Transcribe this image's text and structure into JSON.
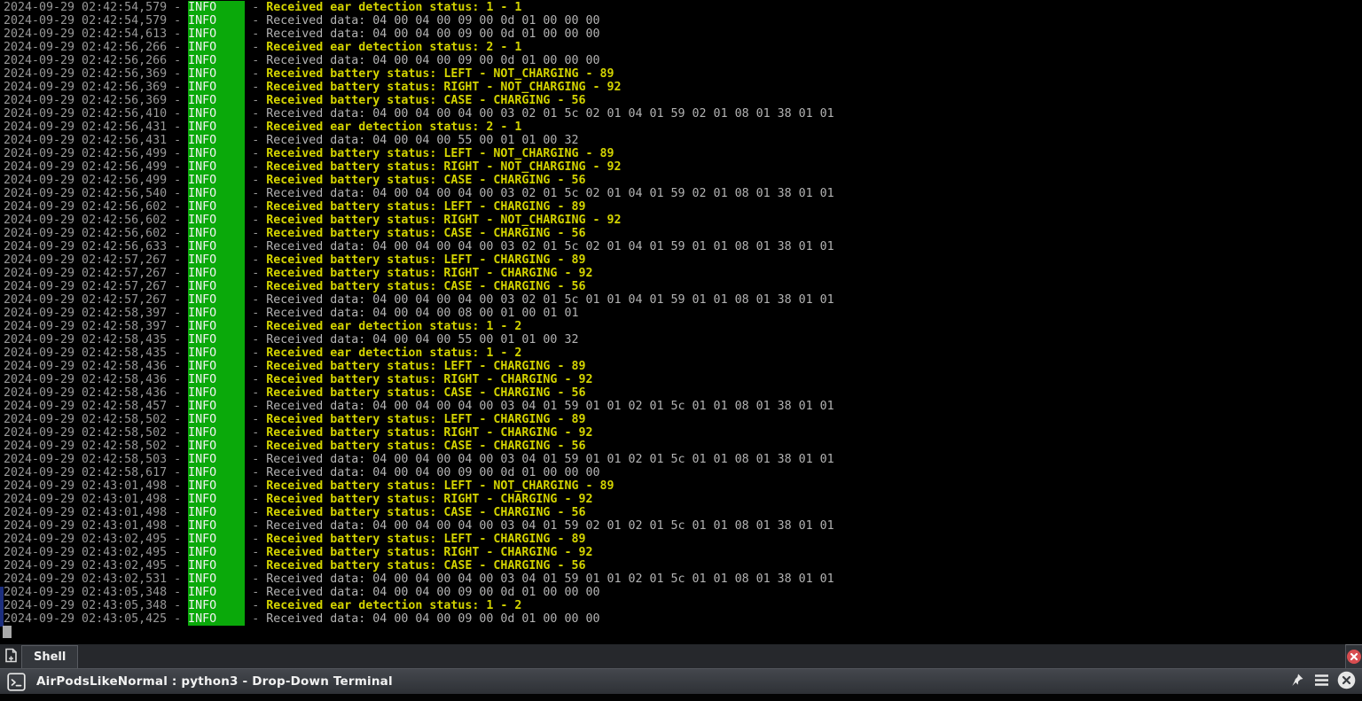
{
  "terminal": {
    "date": "2024-09-29",
    "separator": " - ",
    "level": "INFO",
    "lines": [
      {
        "time": "02:42:54,579",
        "message": "Received ear detection status: 1 - 1",
        "highlight": true
      },
      {
        "time": "02:42:54,579",
        "message": "Received data: 04 00 04 00 09 00 0d 01 00 00 00",
        "highlight": false
      },
      {
        "time": "02:42:54,613",
        "message": "Received data: 04 00 04 00 09 00 0d 01 00 00 00",
        "highlight": false
      },
      {
        "time": "02:42:56,266",
        "message": "Received ear detection status: 2 - 1",
        "highlight": true
      },
      {
        "time": "02:42:56,266",
        "message": "Received data: 04 00 04 00 09 00 0d 01 00 00 00",
        "highlight": false
      },
      {
        "time": "02:42:56,369",
        "message": "Received battery status: LEFT - NOT_CHARGING - 89",
        "highlight": true
      },
      {
        "time": "02:42:56,369",
        "message": "Received battery status: RIGHT - NOT_CHARGING - 92",
        "highlight": true
      },
      {
        "time": "02:42:56,369",
        "message": "Received battery status: CASE - CHARGING - 56",
        "highlight": true
      },
      {
        "time": "02:42:56,410",
        "message": "Received data: 04 00 04 00 04 00 03 02 01 5c 02 01 04 01 59 02 01 08 01 38 01 01",
        "highlight": false
      },
      {
        "time": "02:42:56,431",
        "message": "Received ear detection status: 2 - 1",
        "highlight": true
      },
      {
        "time": "02:42:56,431",
        "message": "Received data: 04 00 04 00 55 00 01 01 00 32",
        "highlight": false
      },
      {
        "time": "02:42:56,499",
        "message": "Received battery status: LEFT - NOT_CHARGING - 89",
        "highlight": true
      },
      {
        "time": "02:42:56,499",
        "message": "Received battery status: RIGHT - NOT_CHARGING - 92",
        "highlight": true
      },
      {
        "time": "02:42:56,499",
        "message": "Received battery status: CASE - CHARGING - 56",
        "highlight": true
      },
      {
        "time": "02:42:56,540",
        "message": "Received data: 04 00 04 00 04 00 03 02 01 5c 02 01 04 01 59 02 01 08 01 38 01 01",
        "highlight": false
      },
      {
        "time": "02:42:56,602",
        "message": "Received battery status: LEFT - CHARGING - 89",
        "highlight": true
      },
      {
        "time": "02:42:56,602",
        "message": "Received battery status: RIGHT - NOT_CHARGING - 92",
        "highlight": true
      },
      {
        "time": "02:42:56,602",
        "message": "Received battery status: CASE - CHARGING - 56",
        "highlight": true
      },
      {
        "time": "02:42:56,633",
        "message": "Received data: 04 00 04 00 04 00 03 02 01 5c 02 01 04 01 59 01 01 08 01 38 01 01",
        "highlight": false
      },
      {
        "time": "02:42:57,267",
        "message": "Received battery status: LEFT - CHARGING - 89",
        "highlight": true
      },
      {
        "time": "02:42:57,267",
        "message": "Received battery status: RIGHT - CHARGING - 92",
        "highlight": true
      },
      {
        "time": "02:42:57,267",
        "message": "Received battery status: CASE - CHARGING - 56",
        "highlight": true
      },
      {
        "time": "02:42:57,267",
        "message": "Received data: 04 00 04 00 04 00 03 02 01 5c 01 01 04 01 59 01 01 08 01 38 01 01",
        "highlight": false
      },
      {
        "time": "02:42:58,397",
        "message": "Received data: 04 00 04 00 08 00 01 00 01 01",
        "highlight": false
      },
      {
        "time": "02:42:58,397",
        "message": "Received ear detection status: 1 - 2",
        "highlight": true
      },
      {
        "time": "02:42:58,435",
        "message": "Received data: 04 00 04 00 55 00 01 01 00 32",
        "highlight": false
      },
      {
        "time": "02:42:58,435",
        "message": "Received ear detection status: 1 - 2",
        "highlight": true
      },
      {
        "time": "02:42:58,436",
        "message": "Received battery status: LEFT - CHARGING - 89",
        "highlight": true
      },
      {
        "time": "02:42:58,436",
        "message": "Received battery status: RIGHT - CHARGING - 92",
        "highlight": true
      },
      {
        "time": "02:42:58,436",
        "message": "Received battery status: CASE - CHARGING - 56",
        "highlight": true
      },
      {
        "time": "02:42:58,457",
        "message": "Received data: 04 00 04 00 04 00 03 04 01 59 01 01 02 01 5c 01 01 08 01 38 01 01",
        "highlight": false
      },
      {
        "time": "02:42:58,502",
        "message": "Received battery status: LEFT - CHARGING - 89",
        "highlight": true
      },
      {
        "time": "02:42:58,502",
        "message": "Received battery status: RIGHT - CHARGING - 92",
        "highlight": true
      },
      {
        "time": "02:42:58,502",
        "message": "Received battery status: CASE - CHARGING - 56",
        "highlight": true
      },
      {
        "time": "02:42:58,503",
        "message": "Received data: 04 00 04 00 04 00 03 04 01 59 01 01 02 01 5c 01 01 08 01 38 01 01",
        "highlight": false
      },
      {
        "time": "02:42:58,617",
        "message": "Received data: 04 00 04 00 09 00 0d 01 00 00 00",
        "highlight": false
      },
      {
        "time": "02:43:01,498",
        "message": "Received battery status: LEFT - NOT_CHARGING - 89",
        "highlight": true
      },
      {
        "time": "02:43:01,498",
        "message": "Received battery status: RIGHT - CHARGING - 92",
        "highlight": true
      },
      {
        "time": "02:43:01,498",
        "message": "Received battery status: CASE - CHARGING - 56",
        "highlight": true
      },
      {
        "time": "02:43:01,498",
        "message": "Received data: 04 00 04 00 04 00 03 04 01 59 02 01 02 01 5c 01 01 08 01 38 01 01",
        "highlight": false
      },
      {
        "time": "02:43:02,495",
        "message": "Received battery status: LEFT - CHARGING - 89",
        "highlight": true
      },
      {
        "time": "02:43:02,495",
        "message": "Received battery status: RIGHT - CHARGING - 92",
        "highlight": true
      },
      {
        "time": "02:43:02,495",
        "message": "Received battery status: CASE - CHARGING - 56",
        "highlight": true
      },
      {
        "time": "02:43:02,531",
        "message": "Received data: 04 00 04 00 04 00 03 04 01 59 01 01 02 01 5c 01 01 08 01 38 01 01",
        "highlight": false
      },
      {
        "time": "02:43:05,348",
        "message": "Received data: 04 00 04 00 09 00 0d 01 00 00 00",
        "highlight": false
      },
      {
        "time": "02:43:05,348",
        "message": "Received ear detection status: 1 - 2",
        "highlight": true
      },
      {
        "time": "02:43:05,425",
        "message": "Received data: 04 00 04 00 09 00 0d 01 00 00 00",
        "highlight": false
      }
    ]
  },
  "tab_bar": {
    "tabs": [
      {
        "label": "Shell",
        "active": true
      }
    ],
    "new_tab_icon": "new-tab-page-plus-icon",
    "close_tab_icon": "red-circle-x-icon"
  },
  "title_bar": {
    "title": "AirPodsLikeNormal : python3 - Drop-Down Terminal",
    "app_icon": "terminal-prompt-icon",
    "icons": [
      "pin-icon",
      "hamburger-menu-icon",
      "close-circle-icon"
    ]
  },
  "colors": {
    "info_badge_green": "#0aa90a",
    "highlight_yellow": "#d4d400",
    "timestamp_gray": "#989898",
    "data_gray": "#b3b3b3",
    "close_red": "#d84d50",
    "selection_blue": "#1c2e7e",
    "terminal_background": "#000000"
  }
}
